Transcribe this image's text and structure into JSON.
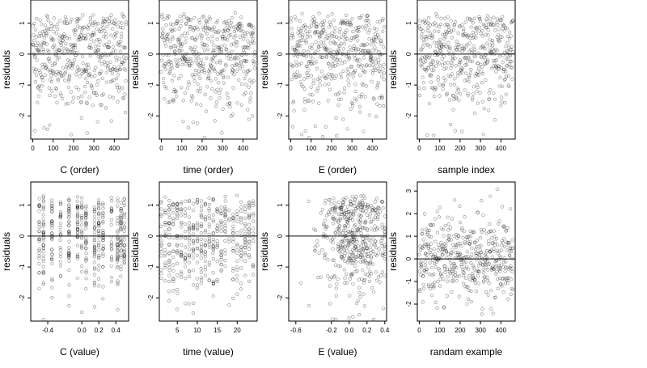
{
  "figure": {
    "background": "#ffffff",
    "point_color": "#000000",
    "point_opacity": 0.45,
    "reference_line_color": "#000000"
  },
  "chart_data": [
    {
      "type": "scatter",
      "panel": "C (order)",
      "xlabel": "C (order)",
      "ylabel": "residuals",
      "xlim": [
        -10,
        470
      ],
      "ylim": [
        -2.75,
        1.75
      ],
      "xticks": [
        0,
        100,
        200,
        300,
        400
      ],
      "xtick_labels": [
        "0",
        "100",
        "200",
        "300",
        "400"
      ],
      "yticks": [
        -2,
        -1,
        0,
        1
      ],
      "ytick_labels": [
        "-2",
        "-1",
        "0",
        "1"
      ],
      "hline": 0,
      "n_points": 460,
      "x_generator": "index",
      "point_pattern": "uniform",
      "seed": 11
    },
    {
      "type": "scatter",
      "panel": "time (order)",
      "xlabel": "time (order)",
      "ylabel": "residuals",
      "xlim": [
        -10,
        470
      ],
      "ylim": [
        -2.75,
        1.75
      ],
      "xticks": [
        0,
        100,
        200,
        300,
        400
      ],
      "xtick_labels": [
        "0",
        "100",
        "200",
        "300",
        "400"
      ],
      "yticks": [
        -2,
        -1,
        0,
        1
      ],
      "ytick_labels": [
        "-2",
        "-1",
        "0",
        "1"
      ],
      "hline": 0,
      "n_points": 460,
      "x_generator": "index",
      "point_pattern": "uniform",
      "seed": 23
    },
    {
      "type": "scatter",
      "panel": "E (order)",
      "xlabel": "E (order)",
      "ylabel": "residuals",
      "xlim": [
        -10,
        470
      ],
      "ylim": [
        -2.75,
        1.75
      ],
      "xticks": [
        0,
        100,
        200,
        300,
        400
      ],
      "xtick_labels": [
        "0",
        "100",
        "200",
        "300",
        "400"
      ],
      "yticks": [
        -2,
        -1,
        0,
        1
      ],
      "ytick_labels": [
        "-2",
        "-1",
        "0",
        "1"
      ],
      "hline": 0,
      "n_points": 460,
      "x_generator": "index",
      "point_pattern": "uniform",
      "seed": 37
    },
    {
      "type": "scatter",
      "panel": "sample index",
      "xlabel": "sample index",
      "ylabel": "residuals",
      "xlim": [
        -10,
        470
      ],
      "ylim": [
        -2.75,
        1.75
      ],
      "xticks": [
        0,
        100,
        200,
        300,
        400
      ],
      "xtick_labels": [
        "0",
        "100",
        "200",
        "300",
        "400"
      ],
      "yticks": [
        -2,
        -1,
        0,
        1
      ],
      "ytick_labels": [
        "-2",
        "-1",
        "0",
        "1"
      ],
      "hline": 0,
      "n_points": 460,
      "x_generator": "index",
      "point_pattern": "uniform",
      "seed": 41
    },
    {
      "type": "scatter",
      "panel": "C (value)",
      "xlabel": "C (value)",
      "ylabel": "residuals",
      "xlim": [
        -0.6,
        0.55
      ],
      "ylim": [
        -2.75,
        1.75
      ],
      "xticks": [
        -0.4,
        0.0,
        0.2,
        0.4
      ],
      "xtick_labels": [
        "-0.4",
        "0.0",
        "0.2",
        "0.4"
      ],
      "yticks": [
        -2,
        -1,
        0,
        1
      ],
      "ytick_labels": [
        "-2",
        "-1",
        "0",
        "1"
      ],
      "hline": 0,
      "n_points": 460,
      "x_generator": "levels",
      "levels": [
        -0.5,
        -0.45,
        -0.35,
        -0.25,
        -0.15,
        -0.05,
        0.0,
        0.05,
        0.15,
        0.2,
        0.25,
        0.35,
        0.42,
        0.46,
        0.5
      ],
      "point_pattern": "columns",
      "seed": 53
    },
    {
      "type": "scatter",
      "panel": "time (value)",
      "xlabel": "time (value)",
      "ylabel": "residuals",
      "xlim": [
        0.5,
        25
      ],
      "ylim": [
        -2.75,
        1.75
      ],
      "xticks": [
        5,
        10,
        15,
        20
      ],
      "xtick_labels": [
        "5",
        "10",
        "15",
        "20"
      ],
      "yticks": [
        -2,
        -1,
        0,
        1
      ],
      "ytick_labels": [
        "-2",
        "-1",
        "0",
        "1"
      ],
      "hline": 0,
      "n_points": 460,
      "x_generator": "levels",
      "levels": [
        1,
        2,
        3,
        4,
        5,
        6,
        7,
        8,
        9,
        10,
        11,
        12,
        13,
        14,
        15,
        16,
        17,
        18,
        19,
        20,
        21,
        22,
        23,
        24
      ],
      "point_pattern": "columns",
      "seed": 67
    },
    {
      "type": "scatter",
      "panel": "E (value)",
      "xlabel": "E (value)",
      "ylabel": "residuals",
      "xlim": [
        -0.68,
        0.42
      ],
      "ylim": [
        -2.75,
        1.75
      ],
      "xticks": [
        -0.6,
        -0.2,
        0.0,
        0.2,
        0.4
      ],
      "xtick_labels": [
        "-0.6",
        "-0.2",
        "0.0",
        "0.2",
        "0.4"
      ],
      "yticks": [
        -2,
        -1,
        0,
        1
      ],
      "ytick_labels": [
        "-2",
        "-1",
        "0",
        "1"
      ],
      "hline": 0,
      "n_points": 460,
      "x_generator": "continuous",
      "x_center": 0.05,
      "x_spread": 0.2,
      "point_pattern": "cluster",
      "seed": 79
    },
    {
      "type": "scatter",
      "panel": "randam example",
      "xlabel": "randam example",
      "ylabel": "residuals",
      "xlim": [
        -10,
        470
      ],
      "ylim": [
        -2.75,
        3.4
      ],
      "xticks": [
        0,
        100,
        200,
        300,
        400
      ],
      "xtick_labels": [
        "0",
        "100",
        "200",
        "300",
        "400"
      ],
      "yticks": [
        -2,
        -1,
        0,
        1,
        2,
        3
      ],
      "ytick_labels": [
        "-2",
        "-1",
        "0",
        "1",
        "2",
        "3"
      ],
      "hline": 0,
      "n_points": 460,
      "x_generator": "index",
      "point_pattern": "normal",
      "seed": 97
    }
  ]
}
